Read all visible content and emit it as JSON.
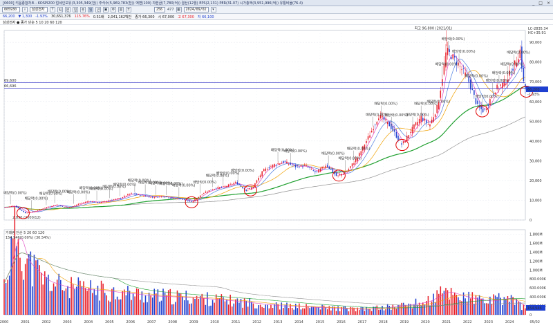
{
  "window": {
    "title": "[0600] 키움종합차트 - KOSPI200 업세인보유(3,305,349(천)) 주식수(5,969,783(천)) 액면(100) 자본금(7,780(억)) 결산(12월) EPS(2,131) PER(31.07) 시가총액(3,951,996(억)) 유통비율(76.4)",
    "controls": [
      "_",
      "□",
      "×"
    ]
  },
  "toolbar": {
    "code": "005930",
    "name": "삼성전자",
    "count": "256",
    "total": "477",
    "date": "2024/09/02",
    "period_buttons": [
      "T",
      "틱",
      "분",
      "일",
      "주",
      "월",
      "년"
    ]
  },
  "pricebar": {
    "items": [
      "66,200",
      "▼ 1,300",
      "-1.93%",
      "30,651,376",
      "115.76%",
      "0.51배",
      "2,041,162백만",
      "종가 66,300",
      "시 67,000",
      "고 67,300",
      "저 66,100"
    ]
  },
  "subbar": {
    "legend": "삼성전자 ● 종가 단순 5 10 20 60 120",
    "volume_legend": "거래량 단순 5 20 60 120",
    "volume_readout": "154,946(0.00%) (30.54%)"
  },
  "colors": {
    "up": "#e8202a",
    "down": "#1e3fd0",
    "ma5": "#e040c0",
    "ma10": "#4a7be0",
    "ma20": "#f0a000",
    "ma60": "#20a030",
    "ma120": "#909090",
    "hline": "#3838c8",
    "circle": "#e00000"
  },
  "chart_data": [
    {
      "type": "candlestick",
      "title": "",
      "interval": "monthly",
      "x_ticks": [
        "2000",
        "2001",
        "2002",
        "2003",
        "2004",
        "2005",
        "2006",
        "2007",
        "2008",
        "2009",
        "2010",
        "2011",
        "2012",
        "2013",
        "2014",
        "2015",
        "2016",
        "2017",
        "2018",
        "2019",
        "2020",
        "2021",
        "2022",
        "2023",
        "2024",
        "05/02"
      ],
      "y_ticks": [
        "0",
        "10,000",
        "20,000",
        "30,000",
        "40,000",
        "50,000",
        "60,000",
        "70,000",
        "80,000",
        "90,000"
      ],
      "ylim": [
        0,
        96000
      ],
      "price_path": [
        {
          "year": 2000.0,
          "price": 6400
        },
        {
          "year": 2000.5,
          "price": 7200
        },
        {
          "year": 2001.0,
          "price": 3500
        },
        {
          "year": 2001.5,
          "price": 4500
        },
        {
          "year": 2002.0,
          "price": 6500
        },
        {
          "year": 2002.5,
          "price": 7800
        },
        {
          "year": 2003.0,
          "price": 6000
        },
        {
          "year": 2003.5,
          "price": 8000
        },
        {
          "year": 2004.0,
          "price": 9500
        },
        {
          "year": 2004.5,
          "price": 8800
        },
        {
          "year": 2005.0,
          "price": 10000
        },
        {
          "year": 2005.5,
          "price": 11000
        },
        {
          "year": 2006.0,
          "price": 13500
        },
        {
          "year": 2006.5,
          "price": 12500
        },
        {
          "year": 2007.0,
          "price": 11500
        },
        {
          "year": 2007.5,
          "price": 12000
        },
        {
          "year": 2008.0,
          "price": 11000
        },
        {
          "year": 2008.5,
          "price": 10500
        },
        {
          "year": 2008.9,
          "price": 9000
        },
        {
          "year": 2009.5,
          "price": 14000
        },
        {
          "year": 2010.0,
          "price": 16000
        },
        {
          "year": 2010.5,
          "price": 17000
        },
        {
          "year": 2011.0,
          "price": 19000
        },
        {
          "year": 2011.5,
          "price": 15000
        },
        {
          "year": 2011.8,
          "price": 16500
        },
        {
          "year": 2012.3,
          "price": 25000
        },
        {
          "year": 2012.8,
          "price": 28000
        },
        {
          "year": 2013.3,
          "price": 29500
        },
        {
          "year": 2013.8,
          "price": 27000
        },
        {
          "year": 2014.3,
          "price": 27500
        },
        {
          "year": 2014.8,
          "price": 24000
        },
        {
          "year": 2015.3,
          "price": 28000
        },
        {
          "year": 2015.8,
          "price": 22000
        },
        {
          "year": 2016.3,
          "price": 25000
        },
        {
          "year": 2016.8,
          "price": 32000
        },
        {
          "year": 2017.3,
          "price": 42000
        },
        {
          "year": 2017.8,
          "price": 53000
        },
        {
          "year": 2018.3,
          "price": 48000
        },
        {
          "year": 2018.9,
          "price": 38000
        },
        {
          "year": 2019.3,
          "price": 45000
        },
        {
          "year": 2019.8,
          "price": 52000
        },
        {
          "year": 2020.2,
          "price": 48000
        },
        {
          "year": 2020.6,
          "price": 58000
        },
        {
          "year": 2021.0,
          "price": 86000
        },
        {
          "year": 2021.5,
          "price": 80000
        },
        {
          "year": 2022.0,
          "price": 72000
        },
        {
          "year": 2022.5,
          "price": 57000
        },
        {
          "year": 2022.8,
          "price": 55000
        },
        {
          "year": 2023.3,
          "price": 66000
        },
        {
          "year": 2023.8,
          "price": 70000
        },
        {
          "year": 2024.3,
          "price": 80000
        },
        {
          "year": 2024.5,
          "price": 86000
        },
        {
          "year": 2024.7,
          "price": 66200
        }
      ],
      "annotations": {
        "high_label": "최고 96,800 (2021/01)",
        "low_label": "2,830 (2000/12)",
        "repeated_label": "배당락(0.00%)",
        "hlines": [
          {
            "value": 69600,
            "label": "69,600"
          },
          {
            "value": 66696,
            "label": "66,696"
          }
        ],
        "current_price": "66,200",
        "current_change": "-1.93%",
        "corner_top": "LC-2835.34",
        "corner_bottom": "HC+35.91"
      },
      "ma_series": [
        "5",
        "10",
        "20",
        "60",
        "120"
      ]
    },
    {
      "type": "bar",
      "title": "",
      "ylabel": "",
      "y_ticks": [
        "0",
        "200.000K",
        "400.000K",
        "600.000K",
        "800.000K",
        "1.000M",
        "1.200M",
        "1.400M",
        "1.600M",
        "1.800M"
      ],
      "ylim": [
        0,
        1900000
      ],
      "volume_path": [
        {
          "year": 2000.0,
          "vol": 700000
        },
        {
          "year": 2000.6,
          "vol": 1900000
        },
        {
          "year": 2001.0,
          "vol": 1200000
        },
        {
          "year": 2002.0,
          "vol": 750000
        },
        {
          "year": 2003.0,
          "vol": 600000
        },
        {
          "year": 2005.0,
          "vol": 520000
        },
        {
          "year": 2007.0,
          "vol": 420000
        },
        {
          "year": 2009.0,
          "vol": 380000
        },
        {
          "year": 2011.0,
          "vol": 300000
        },
        {
          "year": 2013.0,
          "vol": 200000
        },
        {
          "year": 2015.0,
          "vol": 160000
        },
        {
          "year": 2017.0,
          "vol": 120000
        },
        {
          "year": 2018.5,
          "vol": 180000
        },
        {
          "year": 2020.0,
          "vol": 280000
        },
        {
          "year": 2021.0,
          "vol": 520000
        },
        {
          "year": 2022.0,
          "vol": 380000
        },
        {
          "year": 2023.0,
          "vol": 300000
        },
        {
          "year": 2024.0,
          "vol": 380000
        },
        {
          "year": 2024.7,
          "vol": 154946
        }
      ],
      "last_value": "154,946"
    }
  ]
}
